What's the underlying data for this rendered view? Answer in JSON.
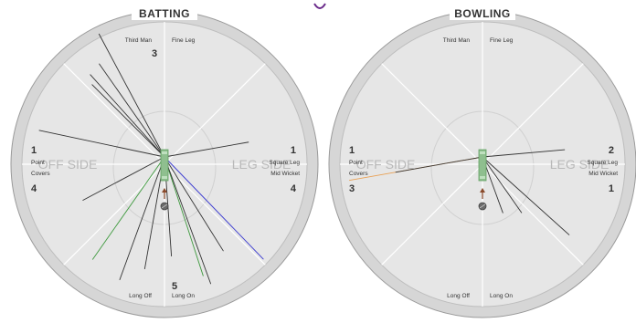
{
  "colors": {
    "outer_ring": "#d6d6d6",
    "ring_stroke": "#9a9a9a",
    "field": "#e6e6e6",
    "divider": "#ffffff",
    "pitch": "#8fbf8f",
    "pitch_stroke": "#5fa05f",
    "shot_default": "#333333",
    "shot_blue": "#3a3ad0",
    "shot_green": "#3f9a3f",
    "shot_orange": "#e9a155"
  },
  "wagon_wheels": [
    {
      "title": "BATTING",
      "side_labels": {
        "off": "OFF SIDE",
        "leg": "LEG SIDE"
      },
      "regions": [
        {
          "key": "third_man",
          "label": "Third Man",
          "runs": "3"
        },
        {
          "key": "fine_leg",
          "label": "Fine Leg",
          "runs": ""
        },
        {
          "key": "square_leg",
          "label": "Square Leg",
          "runs": "1"
        },
        {
          "key": "mid_wicket",
          "label": "Mid Wicket",
          "runs": "4"
        },
        {
          "key": "long_on",
          "label": "Long On",
          "runs": "5"
        },
        {
          "key": "long_off",
          "label": "Long Off",
          "runs": ""
        },
        {
          "key": "covers",
          "label": "Covers",
          "runs": "4"
        },
        {
          "key": "point",
          "label": "Point",
          "runs": "1"
        }
      ],
      "shots": [
        {
          "angle": -28,
          "dist": 0.98,
          "color": "default"
        },
        {
          "angle": -35,
          "dist": 0.8,
          "color": "default"
        },
        {
          "angle": -45,
          "dist": 0.72,
          "color": "default"
        },
        {
          "angle": -42,
          "dist": 0.78,
          "color": "default"
        },
        {
          "angle": -78,
          "dist": 0.9,
          "color": "default"
        },
        {
          "angle": -118,
          "dist": 0.65,
          "color": "default"
        },
        {
          "angle": -145,
          "dist": 0.88,
          "color": "green"
        },
        {
          "angle": -160,
          "dist": 0.92,
          "color": "default"
        },
        {
          "angle": -170,
          "dist": 0.8,
          "color": "default"
        },
        {
          "angle": 162,
          "dist": 0.88,
          "color": "green"
        },
        {
          "angle": 160,
          "dist": 0.95,
          "color": "default"
        },
        {
          "angle": 148,
          "dist": 0.78,
          "color": "default"
        },
        {
          "angle": 136,
          "dist": 1.0,
          "color": "blue"
        },
        {
          "angle": 80,
          "dist": 0.6,
          "color": "default"
        },
        {
          "angle": 176,
          "dist": 0.7,
          "color": "default"
        }
      ]
    },
    {
      "title": "BOWLING",
      "side_labels": {
        "off": "OFF SIDE",
        "leg": "LEG SIDE"
      },
      "regions": [
        {
          "key": "third_man",
          "label": "Third Man",
          "runs": ""
        },
        {
          "key": "fine_leg",
          "label": "Fine Leg",
          "runs": ""
        },
        {
          "key": "square_leg",
          "label": "Square Leg",
          "runs": "2"
        },
        {
          "key": "mid_wicket",
          "label": "Mid Wicket",
          "runs": "1"
        },
        {
          "key": "long_on",
          "label": "Long On",
          "runs": ""
        },
        {
          "key": "long_off",
          "label": "Long Off",
          "runs": ""
        },
        {
          "key": "covers",
          "label": "Covers",
          "runs": "3"
        },
        {
          "key": "point",
          "label": "Point",
          "runs": "1"
        }
      ],
      "shots": [
        {
          "angle": -100,
          "dist": 0.95,
          "color": "orange"
        },
        {
          "angle": -100,
          "dist": 0.62,
          "color": "default"
        },
        {
          "angle": 85,
          "dist": 0.58,
          "color": "default"
        },
        {
          "angle": 132,
          "dist": 0.82,
          "color": "default"
        },
        {
          "angle": 145,
          "dist": 0.48,
          "color": "default"
        },
        {
          "angle": 160,
          "dist": 0.42,
          "color": "default"
        }
      ]
    }
  ]
}
